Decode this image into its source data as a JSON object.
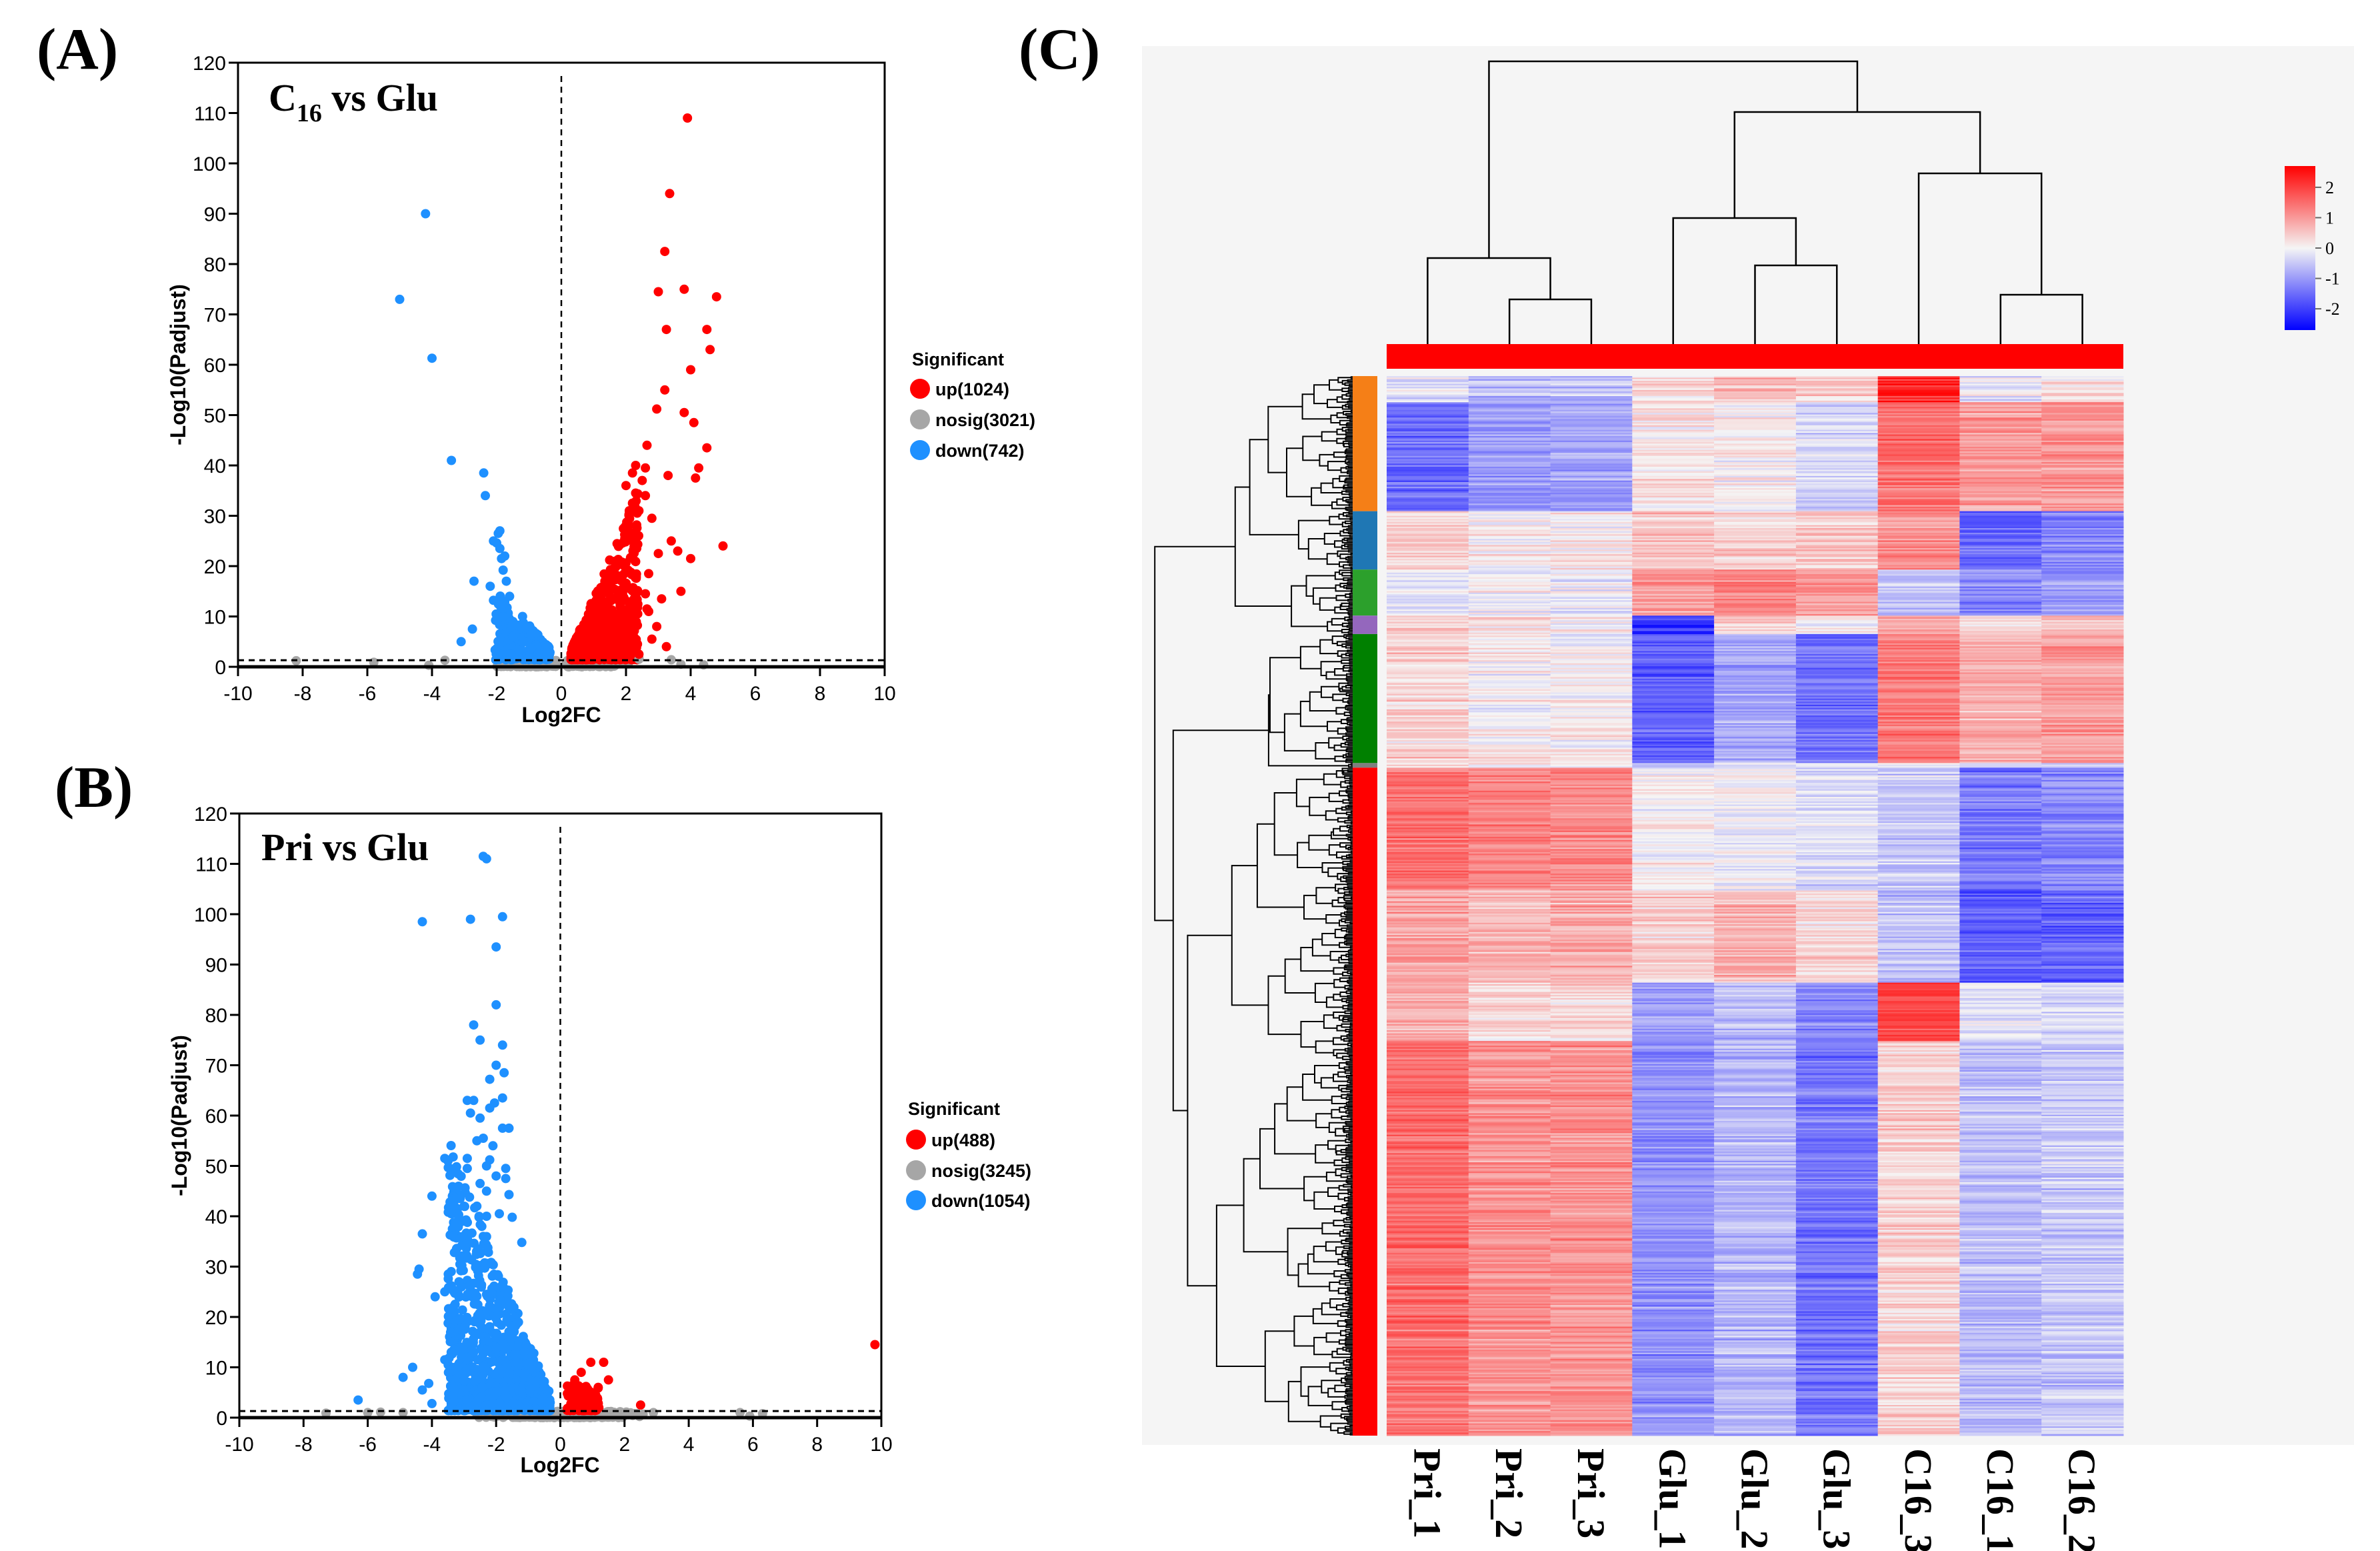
{
  "panels": {
    "a_label": "(A)",
    "b_label": "(B)",
    "c_label": "(C)"
  },
  "chart_data": [
    {
      "type": "scatter",
      "id": "A",
      "title": {
        "prefix": "C",
        "subscript": "16",
        "suffix": " vs Glu"
      },
      "xlabel": "Log2FC",
      "ylabel": "-Log10(Padjust)",
      "xlim": [
        -10,
        10
      ],
      "ylim": [
        0,
        120
      ],
      "xticks": [
        -10,
        -8,
        -6,
        -4,
        -2,
        0,
        2,
        4,
        6,
        8,
        10
      ],
      "yticks": [
        0,
        10,
        20,
        30,
        40,
        50,
        60,
        70,
        80,
        90,
        100,
        110,
        120
      ],
      "threshold_y": 1.3,
      "threshold_x": 0,
      "grid": false,
      "legend": {
        "title": "Significant",
        "placement": "right",
        "items": [
          {
            "key": "up",
            "label": "up(1024)",
            "color": "#ff0000"
          },
          {
            "key": "nosig",
            "label": "nosig(3021)",
            "color": "#a6a6a6"
          },
          {
            "key": "down",
            "label": "down(742)",
            "color": "#1e90ff"
          }
        ]
      },
      "points": {
        "down": [
          [
            -4.2,
            90
          ],
          [
            -5.0,
            73
          ],
          [
            -4.0,
            61.3
          ],
          [
            -3.4,
            41
          ],
          [
            -2.4,
            38.5
          ],
          [
            -2.35,
            34
          ],
          [
            -1.9,
            27
          ],
          [
            -1.95,
            26.5
          ],
          [
            -2.1,
            25
          ],
          [
            -2.0,
            24.6
          ],
          [
            -1.9,
            23.5
          ],
          [
            -1.75,
            22
          ],
          [
            -1.85,
            21.5
          ],
          [
            -2.7,
            17
          ],
          [
            -1.7,
            17
          ],
          [
            -1.8,
            19.2
          ],
          [
            -2.2,
            16
          ],
          [
            -1.95,
            13
          ],
          [
            -2.1,
            13.2
          ],
          [
            -2.75,
            7.5
          ],
          [
            -3.1,
            5
          ],
          [
            -1.9,
            4.6
          ],
          [
            -1.5,
            9
          ],
          [
            -1.2,
            10
          ],
          [
            -1.6,
            14
          ],
          [
            -1.8,
            12.5
          ],
          [
            -1.5,
            6
          ]
        ],
        "up": [
          [
            3.9,
            109
          ],
          [
            3.35,
            94
          ],
          [
            3.2,
            82.5
          ],
          [
            3.8,
            75
          ],
          [
            3.0,
            74.5
          ],
          [
            4.8,
            73.5
          ],
          [
            3.25,
            67
          ],
          [
            4.5,
            67
          ],
          [
            4.6,
            63
          ],
          [
            4.0,
            59
          ],
          [
            3.2,
            55
          ],
          [
            2.95,
            51.2
          ],
          [
            3.8,
            50.5
          ],
          [
            4.1,
            48.5
          ],
          [
            2.65,
            44
          ],
          [
            4.5,
            43.5
          ],
          [
            4.25,
            39.5
          ],
          [
            3.3,
            38
          ],
          [
            4.15,
            37.5
          ],
          [
            5.0,
            24
          ],
          [
            3.4,
            25
          ],
          [
            3.6,
            23
          ],
          [
            4.0,
            21.5
          ],
          [
            3.0,
            22.5
          ],
          [
            3.7,
            15
          ],
          [
            3.1,
            13.5
          ],
          [
            2.95,
            8
          ],
          [
            3.25,
            4
          ],
          [
            2.3,
            40
          ],
          [
            2.6,
            39.5
          ],
          [
            2.2,
            38.5
          ],
          [
            2.5,
            37
          ],
          [
            2.0,
            36
          ],
          [
            2.6,
            34
          ],
          [
            2.3,
            34.5
          ],
          [
            2.2,
            32.5
          ],
          [
            2.1,
            31
          ],
          [
            2.4,
            31
          ],
          [
            2.8,
            29.5
          ],
          [
            2.0,
            27
          ],
          [
            2.25,
            25
          ],
          [
            2.7,
            18.5
          ],
          [
            2.6,
            14.5
          ],
          [
            2.65,
            11.5
          ],
          [
            2.7,
            11
          ],
          [
            2.8,
            5.5
          ],
          [
            2.2,
            8
          ],
          [
            2.4,
            2.5
          ]
        ],
        "nosig": [
          [
            -8.2,
            1.2
          ],
          [
            -5.8,
            0.9
          ],
          [
            -3.6,
            1.3
          ],
          [
            -4.1,
            0.3
          ],
          [
            2.4,
            1.5
          ],
          [
            3.4,
            1.4
          ],
          [
            3.7,
            0.5
          ],
          [
            4.4,
            0.4
          ]
        ]
      }
    },
    {
      "type": "scatter",
      "id": "B",
      "title": {
        "prefix": "Pri vs Glu",
        "subscript": "",
        "suffix": ""
      },
      "xlabel": "Log2FC",
      "ylabel": "-Log10(Padjust)",
      "xlim": [
        -10,
        10
      ],
      "ylim": [
        0,
        120
      ],
      "xticks": [
        -10,
        -8,
        -6,
        -4,
        -2,
        0,
        2,
        4,
        6,
        8,
        10
      ],
      "yticks": [
        0,
        10,
        20,
        30,
        40,
        50,
        60,
        70,
        80,
        90,
        100,
        110,
        120
      ],
      "threshold_y": 1.3,
      "threshold_x": 0,
      "grid": false,
      "legend": {
        "title": "Significant",
        "placement": "right",
        "items": [
          {
            "key": "up",
            "label": "up(488)",
            "color": "#ff0000"
          },
          {
            "key": "nosig",
            "label": "nosig(3245)",
            "color": "#a6a6a6"
          },
          {
            "key": "down",
            "label": "down(1054)",
            "color": "#1e90ff"
          }
        ]
      },
      "points": {
        "down": [
          [
            -2.4,
            111.5
          ],
          [
            -2.3,
            111
          ],
          [
            -4.3,
            98.5
          ],
          [
            -2.8,
            99
          ],
          [
            -1.8,
            99.5
          ],
          [
            -2.0,
            93.5
          ],
          [
            -2.0,
            82
          ],
          [
            -2.7,
            78
          ],
          [
            -2.5,
            75
          ],
          [
            -1.8,
            74
          ],
          [
            -2.0,
            70
          ],
          [
            -1.75,
            68.5
          ],
          [
            -2.2,
            67.2
          ],
          [
            -2.9,
            63
          ],
          [
            -2.7,
            63
          ],
          [
            -2.05,
            62.5
          ],
          [
            -1.8,
            63.5
          ],
          [
            -2.2,
            61.5
          ],
          [
            -2.8,
            60.5
          ],
          [
            -2.5,
            59.5
          ],
          [
            -1.6,
            57.5
          ],
          [
            -1.8,
            57.5
          ],
          [
            -2.4,
            55.5
          ],
          [
            -2.6,
            55
          ],
          [
            -2.1,
            54
          ],
          [
            -3.6,
            51.5
          ],
          [
            -3.5,
            51
          ],
          [
            -2.9,
            51.5
          ],
          [
            -2.2,
            51.2
          ],
          [
            -2.3,
            50
          ],
          [
            -1.7,
            49.5
          ],
          [
            -2.9,
            49.5
          ],
          [
            -2.0,
            48
          ],
          [
            -1.7,
            47.5
          ],
          [
            -2.5,
            46.5
          ],
          [
            -2.3,
            45
          ],
          [
            -1.6,
            44.3
          ],
          [
            -3.3,
            43.5
          ],
          [
            -4.0,
            44
          ],
          [
            -3.3,
            42
          ],
          [
            -3.0,
            42
          ],
          [
            -2.6,
            42
          ],
          [
            -3.4,
            40.5
          ],
          [
            -2.3,
            40
          ],
          [
            -1.9,
            40.5
          ],
          [
            -1.5,
            39.8
          ],
          [
            -4.3,
            36.5
          ],
          [
            -2.4,
            36
          ],
          [
            -1.2,
            34.8
          ],
          [
            -3.3,
            32.8
          ],
          [
            -4.4,
            29.5
          ],
          [
            -4.45,
            28.5
          ],
          [
            -3.4,
            29
          ],
          [
            -3.9,
            24
          ],
          [
            -3.6,
            25
          ],
          [
            -6.3,
            3.5
          ],
          [
            -4.9,
            8
          ],
          [
            -4.6,
            10
          ],
          [
            -4.1,
            6.8
          ],
          [
            -3.6,
            11.5
          ],
          [
            -4.3,
            5.5
          ],
          [
            -4.0,
            2.8
          ],
          [
            -3.3,
            5.8
          ]
        ],
        "up": [
          [
            9.8,
            14.5
          ],
          [
            0.95,
            11
          ],
          [
            1.35,
            11
          ],
          [
            0.65,
            9
          ],
          [
            1.5,
            7.5
          ],
          [
            2.5,
            2.5
          ],
          [
            0.45,
            7.5
          ],
          [
            0.4,
            6.5
          ],
          [
            0.8,
            6.2
          ],
          [
            0.7,
            5.2
          ],
          [
            1.1,
            3
          ],
          [
            1.2,
            2
          ]
        ],
        "nosig": [
          [
            -7.3,
            0.9
          ],
          [
            -5.6,
            1.1
          ],
          [
            -4.9,
            1.0
          ],
          [
            -6.0,
            1.0
          ],
          [
            5.6,
            1.0
          ],
          [
            6.3,
            0.8
          ],
          [
            5.9,
            0.3
          ],
          [
            2.9,
            1.0
          ]
        ]
      }
    },
    {
      "type": "heatmap",
      "id": "C",
      "columns": [
        "Pri_1",
        "Pri_2",
        "Pri_3",
        "Glu_1",
        "Glu_2",
        "Glu_3",
        "C16_3",
        "C16_1",
        "C16_2"
      ],
      "column_group_color": "#ff0000",
      "colorbar": {
        "ticks": [
          2,
          1,
          0,
          -1,
          -2
        ],
        "range": [
          -2.7,
          2.7
        ],
        "low_color": "#0000ff",
        "mid_color": "#f5f5f5",
        "high_color": "#ff0000"
      },
      "column_dendrogram": {
        "order": "((Pri_1,(Pri_2,Pri_3)),((Glu_1,(Glu_2,Glu_3)),(C16_3,(C16_1,C16_2))))"
      },
      "row_clusters": [
        {
          "color": "#f57f17",
          "rows": 88,
          "profiles": [
            {
              "rows": 17,
              "z": [
                -0.3,
                -0.6,
                -0.6,
                0.2,
                0.6,
                0.4,
                2.2,
                -0.2,
                0.2
              ]
            },
            {
              "rows": 71,
              "z": [
                -1.5,
                -1.0,
                -0.9,
                0.2,
                0.1,
                -0.3,
                1.5,
                1.0,
                1.1
              ]
            }
          ]
        },
        {
          "color": "#1f77b4",
          "rows": 38,
          "profiles": [
            {
              "rows": 38,
              "z": [
                0.4,
                0.1,
                0.2,
                0.6,
                0.4,
                0.5,
                1.2,
                -1.5,
                -1.2
              ]
            }
          ]
        },
        {
          "color": "#2ca02c",
          "rows": 30,
          "profiles": [
            {
              "rows": 30,
              "z": [
                -0.2,
                0.0,
                -0.1,
                1.0,
                1.3,
                1.0,
                -0.6,
                -1.2,
                -1.0
              ]
            }
          ]
        },
        {
          "color": "#9467bd",
          "rows": 12,
          "profiles": [
            {
              "rows": 12,
              "z": [
                0.5,
                0.2,
                0.1,
                -2.2,
                0.4,
                0.0,
                0.8,
                0.3,
                0.5
              ]
            }
          ]
        },
        {
          "color": "#008000",
          "rows": 84,
          "profiles": [
            {
              "rows": 84,
              "z": [
                0.4,
                0.1,
                0.1,
                -1.6,
                -0.8,
                -1.4,
                1.4,
                0.8,
                1.0
              ]
            }
          ]
        },
        {
          "color": "#7f7f7f",
          "rows": 3,
          "profiles": [
            {
              "rows": 3,
              "z": [
                0.5,
                0.3,
                0.3,
                -0.5,
                0.0,
                -0.2,
                0.2,
                -0.3,
                -0.2
              ]
            }
          ]
        },
        {
          "color": "#ff0000",
          "rows": 435,
          "profiles": [
            {
              "rows": 80,
              "z": [
                1.4,
                1.2,
                1.2,
                0.0,
                -0.1,
                -0.3,
                -0.5,
                -1.4,
                -1.2
              ]
            },
            {
              "rows": 60,
              "z": [
                0.9,
                0.7,
                0.8,
                0.4,
                0.7,
                0.3,
                -0.6,
                -1.7,
                -1.6
              ]
            },
            {
              "rows": 38,
              "z": [
                0.8,
                0.3,
                0.3,
                -0.9,
                -0.6,
                -1.2,
                2.0,
                -0.2,
                -0.3
              ]
            },
            {
              "rows": 257,
              "z": [
                1.5,
                1.1,
                1.1,
                -1.1,
                -0.7,
                -1.4,
                0.4,
                -0.6,
                -0.5
              ]
            }
          ]
        }
      ]
    }
  ]
}
